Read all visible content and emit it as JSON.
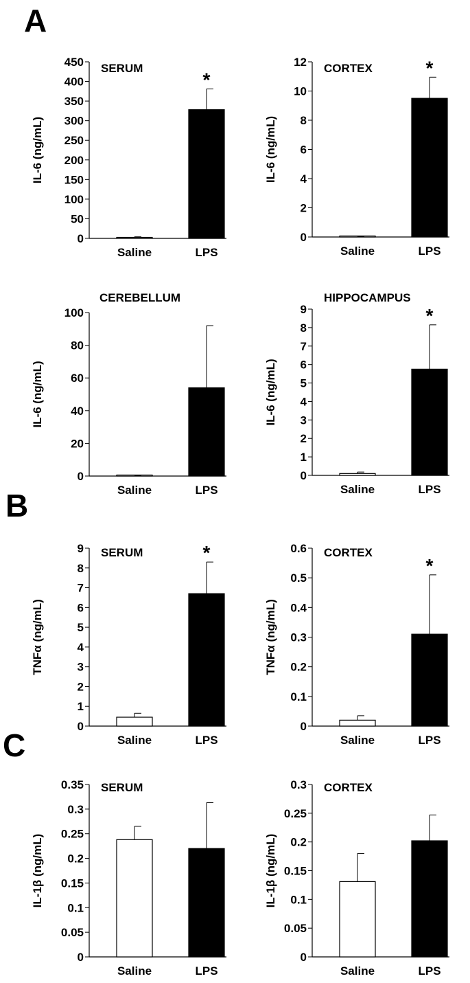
{
  "panel_letters": [
    "A",
    "B",
    "C"
  ],
  "chart_data": [
    {
      "type": "bar",
      "panel": "A",
      "title": "SERUM",
      "ylabel": "IL-6 (ng/mL)",
      "ylim": [
        0,
        450
      ],
      "yticks": [
        "0",
        "50",
        "100",
        "150",
        "200",
        "250",
        "300",
        "350",
        "400",
        "450"
      ],
      "categories": [
        "Saline",
        "LPS"
      ],
      "values": [
        2,
        328
      ],
      "errors": [
        2,
        53
      ],
      "bar_colors": [
        "#ffffff",
        "#000000"
      ],
      "significance": [
        "",
        "*"
      ]
    },
    {
      "type": "bar",
      "panel": "A",
      "title": "CORTEX",
      "ylabel": "IL-6 (ng/mL)",
      "ylim": [
        0,
        12
      ],
      "yticks": [
        "0",
        "2",
        "4",
        "6",
        "8",
        "10",
        "12"
      ],
      "categories": [
        "Saline",
        "LPS"
      ],
      "values": [
        0.02,
        9.5
      ],
      "errors": [
        0.02,
        1.45
      ],
      "bar_colors": [
        "#ffffff",
        "#000000"
      ],
      "significance": [
        "",
        "*"
      ]
    },
    {
      "type": "bar",
      "panel": "A",
      "title": "CEREBELLUM",
      "ylabel": "IL-6 (ng/mL)",
      "ylim": [
        0,
        100
      ],
      "yticks": [
        "0",
        "20",
        "40",
        "60",
        "80",
        "100"
      ],
      "categories": [
        "Saline",
        "LPS"
      ],
      "values": [
        0.2,
        54
      ],
      "errors": [
        0.2,
        38
      ],
      "bar_colors": [
        "#ffffff",
        "#000000"
      ],
      "significance": [
        "",
        ""
      ]
    },
    {
      "type": "bar",
      "panel": "A",
      "title": "HIPPOCAMPUS",
      "ylabel": "IL-6 (ng/mL)",
      "ylim": [
        0,
        9
      ],
      "yticks": [
        "0",
        "1",
        "2",
        "3",
        "4",
        "5",
        "6",
        "7",
        "8",
        "9"
      ],
      "categories": [
        "Saline",
        "LPS"
      ],
      "values": [
        0.1,
        5.75
      ],
      "errors": [
        0.08,
        2.4
      ],
      "bar_colors": [
        "#ffffff",
        "#000000"
      ],
      "significance": [
        "",
        "*"
      ]
    },
    {
      "type": "bar",
      "panel": "B",
      "title": "SERUM",
      "ylabel": "TNFα (ng/mL)",
      "ylim": [
        0,
        9
      ],
      "yticks": [
        "0",
        "1",
        "2",
        "3",
        "4",
        "5",
        "6",
        "7",
        "8",
        "9"
      ],
      "categories": [
        "Saline",
        "LPS"
      ],
      "values": [
        0.45,
        6.7
      ],
      "errors": [
        0.2,
        1.6
      ],
      "bar_colors": [
        "#ffffff",
        "#000000"
      ],
      "significance": [
        "",
        "*"
      ]
    },
    {
      "type": "bar",
      "panel": "B",
      "title": "CORTEX",
      "ylabel": "TNFα (ng/mL)",
      "ylim": [
        0,
        0.6
      ],
      "yticks": [
        "0",
        "0.1",
        "0.2",
        "0.3",
        "0.4",
        "0.5",
        "0.6"
      ],
      "categories": [
        "Saline",
        "LPS"
      ],
      "values": [
        0.02,
        0.31
      ],
      "errors": [
        0.015,
        0.2
      ],
      "bar_colors": [
        "#ffffff",
        "#000000"
      ],
      "significance": [
        "",
        "*"
      ]
    },
    {
      "type": "bar",
      "panel": "C",
      "title": "SERUM",
      "ylabel": "IL-1β (ng/mL)",
      "ylim": [
        0,
        0.35
      ],
      "yticks": [
        "0",
        "0.05",
        "0.1",
        "0.15",
        "0.2",
        "0.25",
        "0.3",
        "0.35"
      ],
      "categories": [
        "Saline",
        "LPS"
      ],
      "values": [
        0.238,
        0.22
      ],
      "errors": [
        0.027,
        0.093
      ],
      "bar_colors": [
        "#ffffff",
        "#000000"
      ],
      "significance": [
        "",
        ""
      ]
    },
    {
      "type": "bar",
      "panel": "C",
      "title": "CORTEX",
      "ylabel": "IL-1β (ng/mL)",
      "ylim": [
        0,
        0.3
      ],
      "yticks": [
        "0",
        "0.05",
        "0.1",
        "0.15",
        "0.2",
        "0.25",
        "0.3"
      ],
      "categories": [
        "Saline",
        "LPS"
      ],
      "values": [
        0.131,
        0.202
      ],
      "errors": [
        0.049,
        0.045
      ],
      "bar_colors": [
        "#ffffff",
        "#000000"
      ],
      "significance": [
        "",
        ""
      ]
    }
  ]
}
